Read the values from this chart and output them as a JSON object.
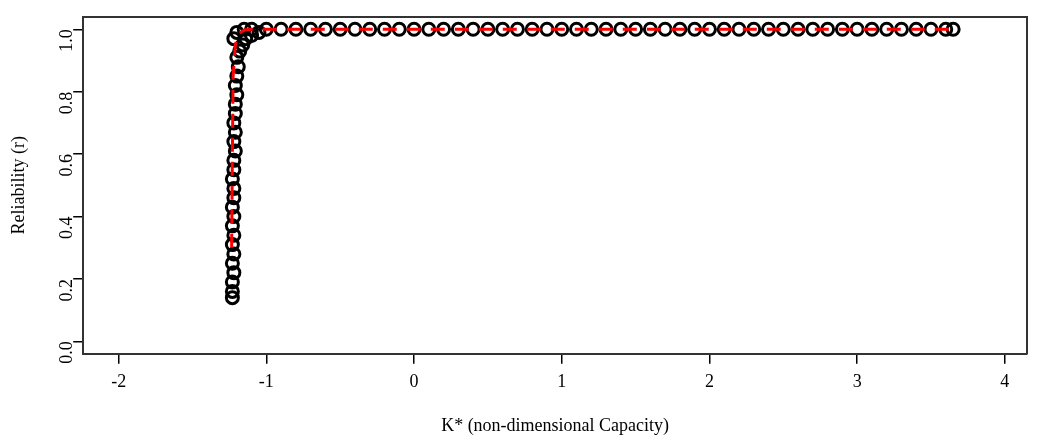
{
  "chart_data": {
    "type": "scatter",
    "xlabel": "K* (non-dimensional Capacity)",
    "ylabel": "Reliability (r)",
    "xlim": [
      -2.24,
      4.15
    ],
    "ylim": [
      -0.04,
      1.04
    ],
    "xticks": [
      -2,
      -1,
      0,
      1,
      2,
      3,
      4
    ],
    "yticks": [
      {
        "value": 0,
        "label": "0.0"
      },
      {
        "value": 0.2,
        "label": "0.2"
      },
      {
        "value": 0.4,
        "label": "0.4"
      },
      {
        "value": 0.6,
        "label": "0.6"
      },
      {
        "value": 0.8,
        "label": "0.8"
      },
      {
        "value": 1,
        "label": "1.0"
      }
    ],
    "grid": false,
    "legend": false,
    "series": [
      {
        "type": "scatter",
        "color": "#000000",
        "marker": "circle",
        "x": [
          -1.23,
          -1.23,
          -1.23,
          -1.22,
          -1.23,
          -1.22,
          -1.23,
          -1.22,
          -1.23,
          -1.22,
          -1.23,
          -1.22,
          -1.22,
          -1.23,
          -1.22,
          -1.22,
          -1.21,
          -1.22,
          -1.21,
          -1.22,
          -1.21,
          -1.21,
          -1.2,
          -1.21,
          -1.2,
          -1.19,
          -1.2,
          -1.18,
          -1.16,
          -1.14,
          -1.1,
          -1.05,
          -1.22,
          -1.2,
          -1.15,
          -1.1,
          -1.0,
          -0.9,
          -0.8,
          -0.7,
          -0.6,
          -0.5,
          -0.4,
          -0.3,
          -0.2,
          -0.1,
          0,
          0.1,
          0.2,
          0.3,
          0.4,
          0.5,
          0.6,
          0.7,
          0.8,
          0.9,
          1,
          1.1,
          1.2,
          1.3,
          1.4,
          1.5,
          1.6,
          1.7,
          1.8,
          1.9,
          2,
          2.1,
          2.2,
          2.3,
          2.4,
          2.5,
          2.6,
          2.7,
          2.8,
          2.9,
          3,
          3.1,
          3.2,
          3.3,
          3.4,
          3.5,
          3.6,
          3.65
        ],
        "values": [
          0.14,
          0.16,
          0.19,
          0.22,
          0.25,
          0.28,
          0.31,
          0.34,
          0.37,
          0.4,
          0.43,
          0.46,
          0.49,
          0.52,
          0.55,
          0.58,
          0.61,
          0.64,
          0.67,
          0.7,
          0.73,
          0.76,
          0.79,
          0.82,
          0.85,
          0.88,
          0.91,
          0.93,
          0.95,
          0.97,
          0.98,
          0.99,
          0.97,
          0.99,
          1,
          1,
          1,
          1,
          1,
          1,
          1,
          1,
          1,
          1,
          1,
          1,
          1,
          1,
          1,
          1,
          1,
          1,
          1,
          1,
          1,
          1,
          1,
          1,
          1,
          1,
          1,
          1,
          1,
          1,
          1,
          1,
          1,
          1,
          1,
          1,
          1,
          1,
          1,
          1,
          1,
          1,
          1,
          1,
          1,
          1,
          1,
          1,
          1,
          1
        ]
      },
      {
        "type": "line",
        "color": "#ff0000",
        "marker": "none",
        "line_style": "dashed",
        "x": [
          -1.235,
          -1.23,
          -1.225,
          -1.21,
          -1.19,
          -1.15,
          -1.1,
          3.65
        ],
        "values": [
          0.3,
          0.6,
          0.85,
          0.95,
          0.985,
          0.998,
          1,
          1
        ]
      }
    ]
  }
}
